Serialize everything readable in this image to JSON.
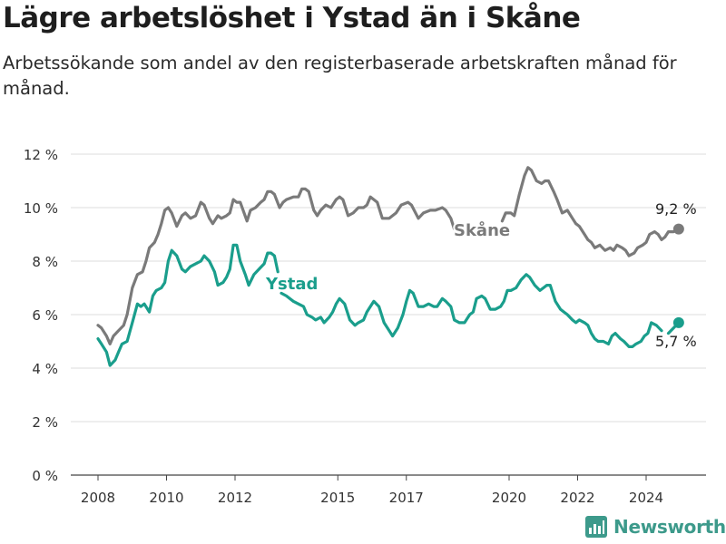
{
  "title": "Lägre arbetslöshet i Ystad än i Skåne",
  "subtitle": "Arbetssökande som andel av den registerbaserade arbetskraften månad för månad.",
  "brand": {
    "name": "Newsworthy",
    "icon": "bar-chart-logo-icon",
    "color": "#3d9a8b"
  },
  "chart_data": {
    "type": "line",
    "title": "Lägre arbetslöshet i Ystad än i Skåne",
    "subtitle": "Arbetssökande som andel av den registerbaserade arbetskraften månad för månad.",
    "xlabel": "",
    "ylabel": "",
    "xlim": [
      2007.4,
      2025.75
    ],
    "ylim": [
      0,
      12
    ],
    "grid": true,
    "y_ticks": [
      0,
      2,
      4,
      6,
      8,
      10,
      12
    ],
    "y_tick_labels": [
      "0 %",
      "2 %",
      "4 %",
      "6 %",
      "8 %",
      "10 %",
      "12 %"
    ],
    "x_ticks": [
      2008,
      2010,
      2012,
      2015,
      2017,
      2020,
      2022,
      2024
    ],
    "x_tick_labels": [
      "2008",
      "2010",
      "2012",
      "2015",
      "2017",
      "2020",
      "2022",
      "2024"
    ],
    "series": [
      {
        "name": "Skåne",
        "color": "#7a7a7a",
        "end_label": "9,2 %",
        "segments": [
          [
            [
              2008.0,
              5.6
            ],
            [
              2008.1,
              5.5
            ],
            [
              2008.25,
              5.2
            ],
            [
              2008.35,
              4.9
            ],
            [
              2008.45,
              5.2
            ],
            [
              2008.6,
              5.4
            ],
            [
              2008.75,
              5.6
            ],
            [
              2008.85,
              6.0
            ],
            [
              2009.0,
              7.0
            ],
            [
              2009.15,
              7.5
            ],
            [
              2009.3,
              7.6
            ],
            [
              2009.4,
              8.0
            ],
            [
              2009.5,
              8.5
            ],
            [
              2009.65,
              8.7
            ],
            [
              2009.75,
              9.0
            ],
            [
              2009.85,
              9.4
            ],
            [
              2009.95,
              9.9
            ],
            [
              2010.05,
              10.0
            ],
            [
              2010.15,
              9.8
            ],
            [
              2010.3,
              9.3
            ],
            [
              2010.45,
              9.7
            ],
            [
              2010.55,
              9.8
            ],
            [
              2010.7,
              9.6
            ],
            [
              2010.85,
              9.7
            ],
            [
              2011.0,
              10.2
            ],
            [
              2011.1,
              10.1
            ],
            [
              2011.25,
              9.6
            ],
            [
              2011.35,
              9.4
            ],
            [
              2011.5,
              9.7
            ],
            [
              2011.6,
              9.6
            ],
            [
              2011.75,
              9.7
            ],
            [
              2011.85,
              9.8
            ],
            [
              2011.95,
              10.3
            ],
            [
              2012.05,
              10.2
            ],
            [
              2012.15,
              10.2
            ],
            [
              2012.35,
              9.5
            ],
            [
              2012.45,
              9.9
            ],
            [
              2012.6,
              10.0
            ],
            [
              2012.75,
              10.2
            ],
            [
              2012.85,
              10.3
            ],
            [
              2012.95,
              10.6
            ],
            [
              2013.05,
              10.6
            ],
            [
              2013.15,
              10.5
            ],
            [
              2013.3,
              10.0
            ],
            [
              2013.4,
              10.2
            ],
            [
              2013.5,
              10.3
            ],
            [
              2013.7,
              10.4
            ],
            [
              2013.85,
              10.4
            ],
            [
              2013.95,
              10.7
            ],
            [
              2014.05,
              10.7
            ],
            [
              2014.15,
              10.6
            ],
            [
              2014.3,
              9.9
            ],
            [
              2014.4,
              9.7
            ],
            [
              2014.5,
              9.9
            ],
            [
              2014.65,
              10.1
            ],
            [
              2014.8,
              10.0
            ],
            [
              2014.95,
              10.3
            ],
            [
              2015.05,
              10.4
            ],
            [
              2015.15,
              10.3
            ],
            [
              2015.3,
              9.7
            ],
            [
              2015.45,
              9.8
            ],
            [
              2015.6,
              10.0
            ],
            [
              2015.75,
              10.0
            ],
            [
              2015.85,
              10.1
            ],
            [
              2015.95,
              10.4
            ],
            [
              2016.05,
              10.3
            ],
            [
              2016.15,
              10.2
            ],
            [
              2016.3,
              9.6
            ],
            [
              2016.5,
              9.6
            ],
            [
              2016.7,
              9.8
            ],
            [
              2016.85,
              10.1
            ],
            [
              2017.05,
              10.2
            ],
            [
              2017.15,
              10.1
            ],
            [
              2017.35,
              9.6
            ],
            [
              2017.5,
              9.8
            ],
            [
              2017.7,
              9.9
            ],
            [
              2017.85,
              9.9
            ],
            [
              2018.05,
              10.0
            ],
            [
              2018.15,
              9.9
            ],
            [
              2018.3,
              9.6
            ],
            [
              2018.4,
              9.2
            ]
          ],
          [
            [
              2019.8,
              9.5
            ],
            [
              2019.9,
              9.8
            ],
            [
              2020.05,
              9.8
            ],
            [
              2020.15,
              9.7
            ],
            [
              2020.3,
              10.5
            ],
            [
              2020.45,
              11.2
            ],
            [
              2020.55,
              11.5
            ],
            [
              2020.65,
              11.4
            ],
            [
              2020.8,
              11.0
            ],
            [
              2020.95,
              10.9
            ],
            [
              2021.05,
              11.0
            ],
            [
              2021.15,
              11.0
            ],
            [
              2021.3,
              10.6
            ],
            [
              2021.4,
              10.3
            ],
            [
              2021.55,
              9.8
            ],
            [
              2021.7,
              9.9
            ],
            [
              2021.85,
              9.6
            ],
            [
              2021.95,
              9.4
            ],
            [
              2022.05,
              9.3
            ],
            [
              2022.2,
              9.0
            ],
            [
              2022.3,
              8.8
            ],
            [
              2022.4,
              8.7
            ],
            [
              2022.5,
              8.5
            ],
            [
              2022.65,
              8.6
            ],
            [
              2022.8,
              8.4
            ],
            [
              2022.95,
              8.5
            ],
            [
              2023.05,
              8.4
            ],
            [
              2023.15,
              8.6
            ],
            [
              2023.3,
              8.5
            ],
            [
              2023.4,
              8.4
            ],
            [
              2023.5,
              8.2
            ],
            [
              2023.65,
              8.3
            ],
            [
              2023.75,
              8.5
            ],
            [
              2023.9,
              8.6
            ],
            [
              2024.0,
              8.7
            ],
            [
              2024.1,
              9.0
            ],
            [
              2024.25,
              9.1
            ],
            [
              2024.35,
              9.0
            ],
            [
              2024.45,
              8.8
            ],
            [
              2024.55,
              8.9
            ],
            [
              2024.65,
              9.1
            ],
            [
              2024.8,
              9.1
            ],
            [
              2024.95,
              9.2
            ]
          ]
        ]
      },
      {
        "name": "Ystad",
        "color": "#1a9e8c",
        "end_label": "5,7 %",
        "segments": [
          [
            [
              2008.0,
              5.1
            ],
            [
              2008.1,
              4.9
            ],
            [
              2008.25,
              4.6
            ],
            [
              2008.35,
              4.1
            ],
            [
              2008.5,
              4.3
            ],
            [
              2008.6,
              4.6
            ],
            [
              2008.7,
              4.9
            ],
            [
              2008.85,
              5.0
            ],
            [
              2009.0,
              5.7
            ],
            [
              2009.15,
              6.4
            ],
            [
              2009.25,
              6.3
            ],
            [
              2009.35,
              6.4
            ],
            [
              2009.5,
              6.1
            ],
            [
              2009.6,
              6.7
            ],
            [
              2009.7,
              6.9
            ],
            [
              2009.85,
              7.0
            ],
            [
              2009.95,
              7.2
            ],
            [
              2010.05,
              8.0
            ],
            [
              2010.15,
              8.4
            ],
            [
              2010.3,
              8.2
            ],
            [
              2010.45,
              7.7
            ],
            [
              2010.55,
              7.6
            ],
            [
              2010.7,
              7.8
            ],
            [
              2010.85,
              7.9
            ],
            [
              2011.0,
              8.0
            ],
            [
              2011.1,
              8.2
            ],
            [
              2011.25,
              8.0
            ],
            [
              2011.4,
              7.6
            ],
            [
              2011.5,
              7.1
            ],
            [
              2011.65,
              7.2
            ],
            [
              2011.75,
              7.4
            ],
            [
              2011.85,
              7.7
            ],
            [
              2011.95,
              8.6
            ],
            [
              2012.05,
              8.6
            ],
            [
              2012.15,
              8.0
            ],
            [
              2012.3,
              7.5
            ],
            [
              2012.4,
              7.1
            ],
            [
              2012.55,
              7.5
            ],
            [
              2012.7,
              7.7
            ],
            [
              2012.85,
              7.9
            ],
            [
              2012.95,
              8.3
            ],
            [
              2013.05,
              8.3
            ],
            [
              2013.15,
              8.2
            ],
            [
              2013.25,
              7.6
            ]
          ],
          [
            [
              2013.35,
              6.8
            ],
            [
              2013.5,
              6.7
            ],
            [
              2013.7,
              6.5
            ],
            [
              2013.85,
              6.4
            ],
            [
              2014.0,
              6.3
            ],
            [
              2014.1,
              6.0
            ],
            [
              2014.25,
              5.9
            ],
            [
              2014.35,
              5.8
            ],
            [
              2014.5,
              5.9
            ],
            [
              2014.6,
              5.7
            ],
            [
              2014.75,
              5.9
            ],
            [
              2014.85,
              6.1
            ],
            [
              2014.95,
              6.4
            ],
            [
              2015.05,
              6.6
            ],
            [
              2015.2,
              6.4
            ],
            [
              2015.35,
              5.8
            ],
            [
              2015.5,
              5.6
            ],
            [
              2015.6,
              5.7
            ],
            [
              2015.75,
              5.8
            ],
            [
              2015.85,
              6.1
            ],
            [
              2015.95,
              6.3
            ],
            [
              2016.05,
              6.5
            ],
            [
              2016.2,
              6.3
            ],
            [
              2016.35,
              5.7
            ],
            [
              2016.5,
              5.4
            ],
            [
              2016.6,
              5.2
            ],
            [
              2016.75,
              5.5
            ],
            [
              2016.9,
              6.0
            ],
            [
              2017.0,
              6.5
            ],
            [
              2017.1,
              6.9
            ],
            [
              2017.2,
              6.8
            ],
            [
              2017.35,
              6.3
            ],
            [
              2017.5,
              6.3
            ],
            [
              2017.65,
              6.4
            ],
            [
              2017.8,
              6.3
            ],
            [
              2017.9,
              6.3
            ],
            [
              2018.05,
              6.6
            ],
            [
              2018.15,
              6.5
            ],
            [
              2018.3,
              6.3
            ],
            [
              2018.4,
              5.8
            ],
            [
              2018.55,
              5.7
            ],
            [
              2018.7,
              5.7
            ],
            [
              2018.85,
              6.0
            ],
            [
              2018.95,
              6.1
            ],
            [
              2019.05,
              6.6
            ],
            [
              2019.2,
              6.7
            ],
            [
              2019.3,
              6.6
            ],
            [
              2019.45,
              6.2
            ],
            [
              2019.6,
              6.2
            ],
            [
              2019.75,
              6.3
            ],
            [
              2019.85,
              6.5
            ],
            [
              2019.95,
              6.9
            ],
            [
              2020.05,
              6.9
            ],
            [
              2020.2,
              7.0
            ],
            [
              2020.35,
              7.3
            ],
            [
              2020.5,
              7.5
            ],
            [
              2020.6,
              7.4
            ],
            [
              2020.75,
              7.1
            ],
            [
              2020.9,
              6.9
            ],
            [
              2021.0,
              7.0
            ],
            [
              2021.1,
              7.1
            ],
            [
              2021.2,
              7.1
            ],
            [
              2021.35,
              6.5
            ],
            [
              2021.5,
              6.2
            ],
            [
              2021.6,
              6.1
            ],
            [
              2021.7,
              6.0
            ],
            [
              2021.85,
              5.8
            ],
            [
              2021.95,
              5.7
            ],
            [
              2022.05,
              5.8
            ],
            [
              2022.2,
              5.7
            ],
            [
              2022.3,
              5.6
            ],
            [
              2022.4,
              5.3
            ],
            [
              2022.5,
              5.1
            ],
            [
              2022.6,
              5.0
            ],
            [
              2022.75,
              5.0
            ],
            [
              2022.9,
              4.9
            ],
            [
              2023.0,
              5.2
            ],
            [
              2023.1,
              5.3
            ],
            [
              2023.25,
              5.1
            ],
            [
              2023.35,
              5.0
            ],
            [
              2023.5,
              4.8
            ],
            [
              2023.6,
              4.8
            ],
            [
              2023.7,
              4.9
            ],
            [
              2023.85,
              5.0
            ],
            [
              2023.95,
              5.2
            ],
            [
              2024.05,
              5.3
            ],
            [
              2024.15,
              5.7
            ],
            [
              2024.3,
              5.6
            ],
            [
              2024.45,
              5.4
            ]
          ],
          [
            [
              2024.65,
              5.3
            ],
            [
              2024.8,
              5.5
            ],
            [
              2024.95,
              5.7
            ]
          ]
        ]
      }
    ],
    "inline_labels": [
      "Skåne",
      "Ystad"
    ]
  }
}
